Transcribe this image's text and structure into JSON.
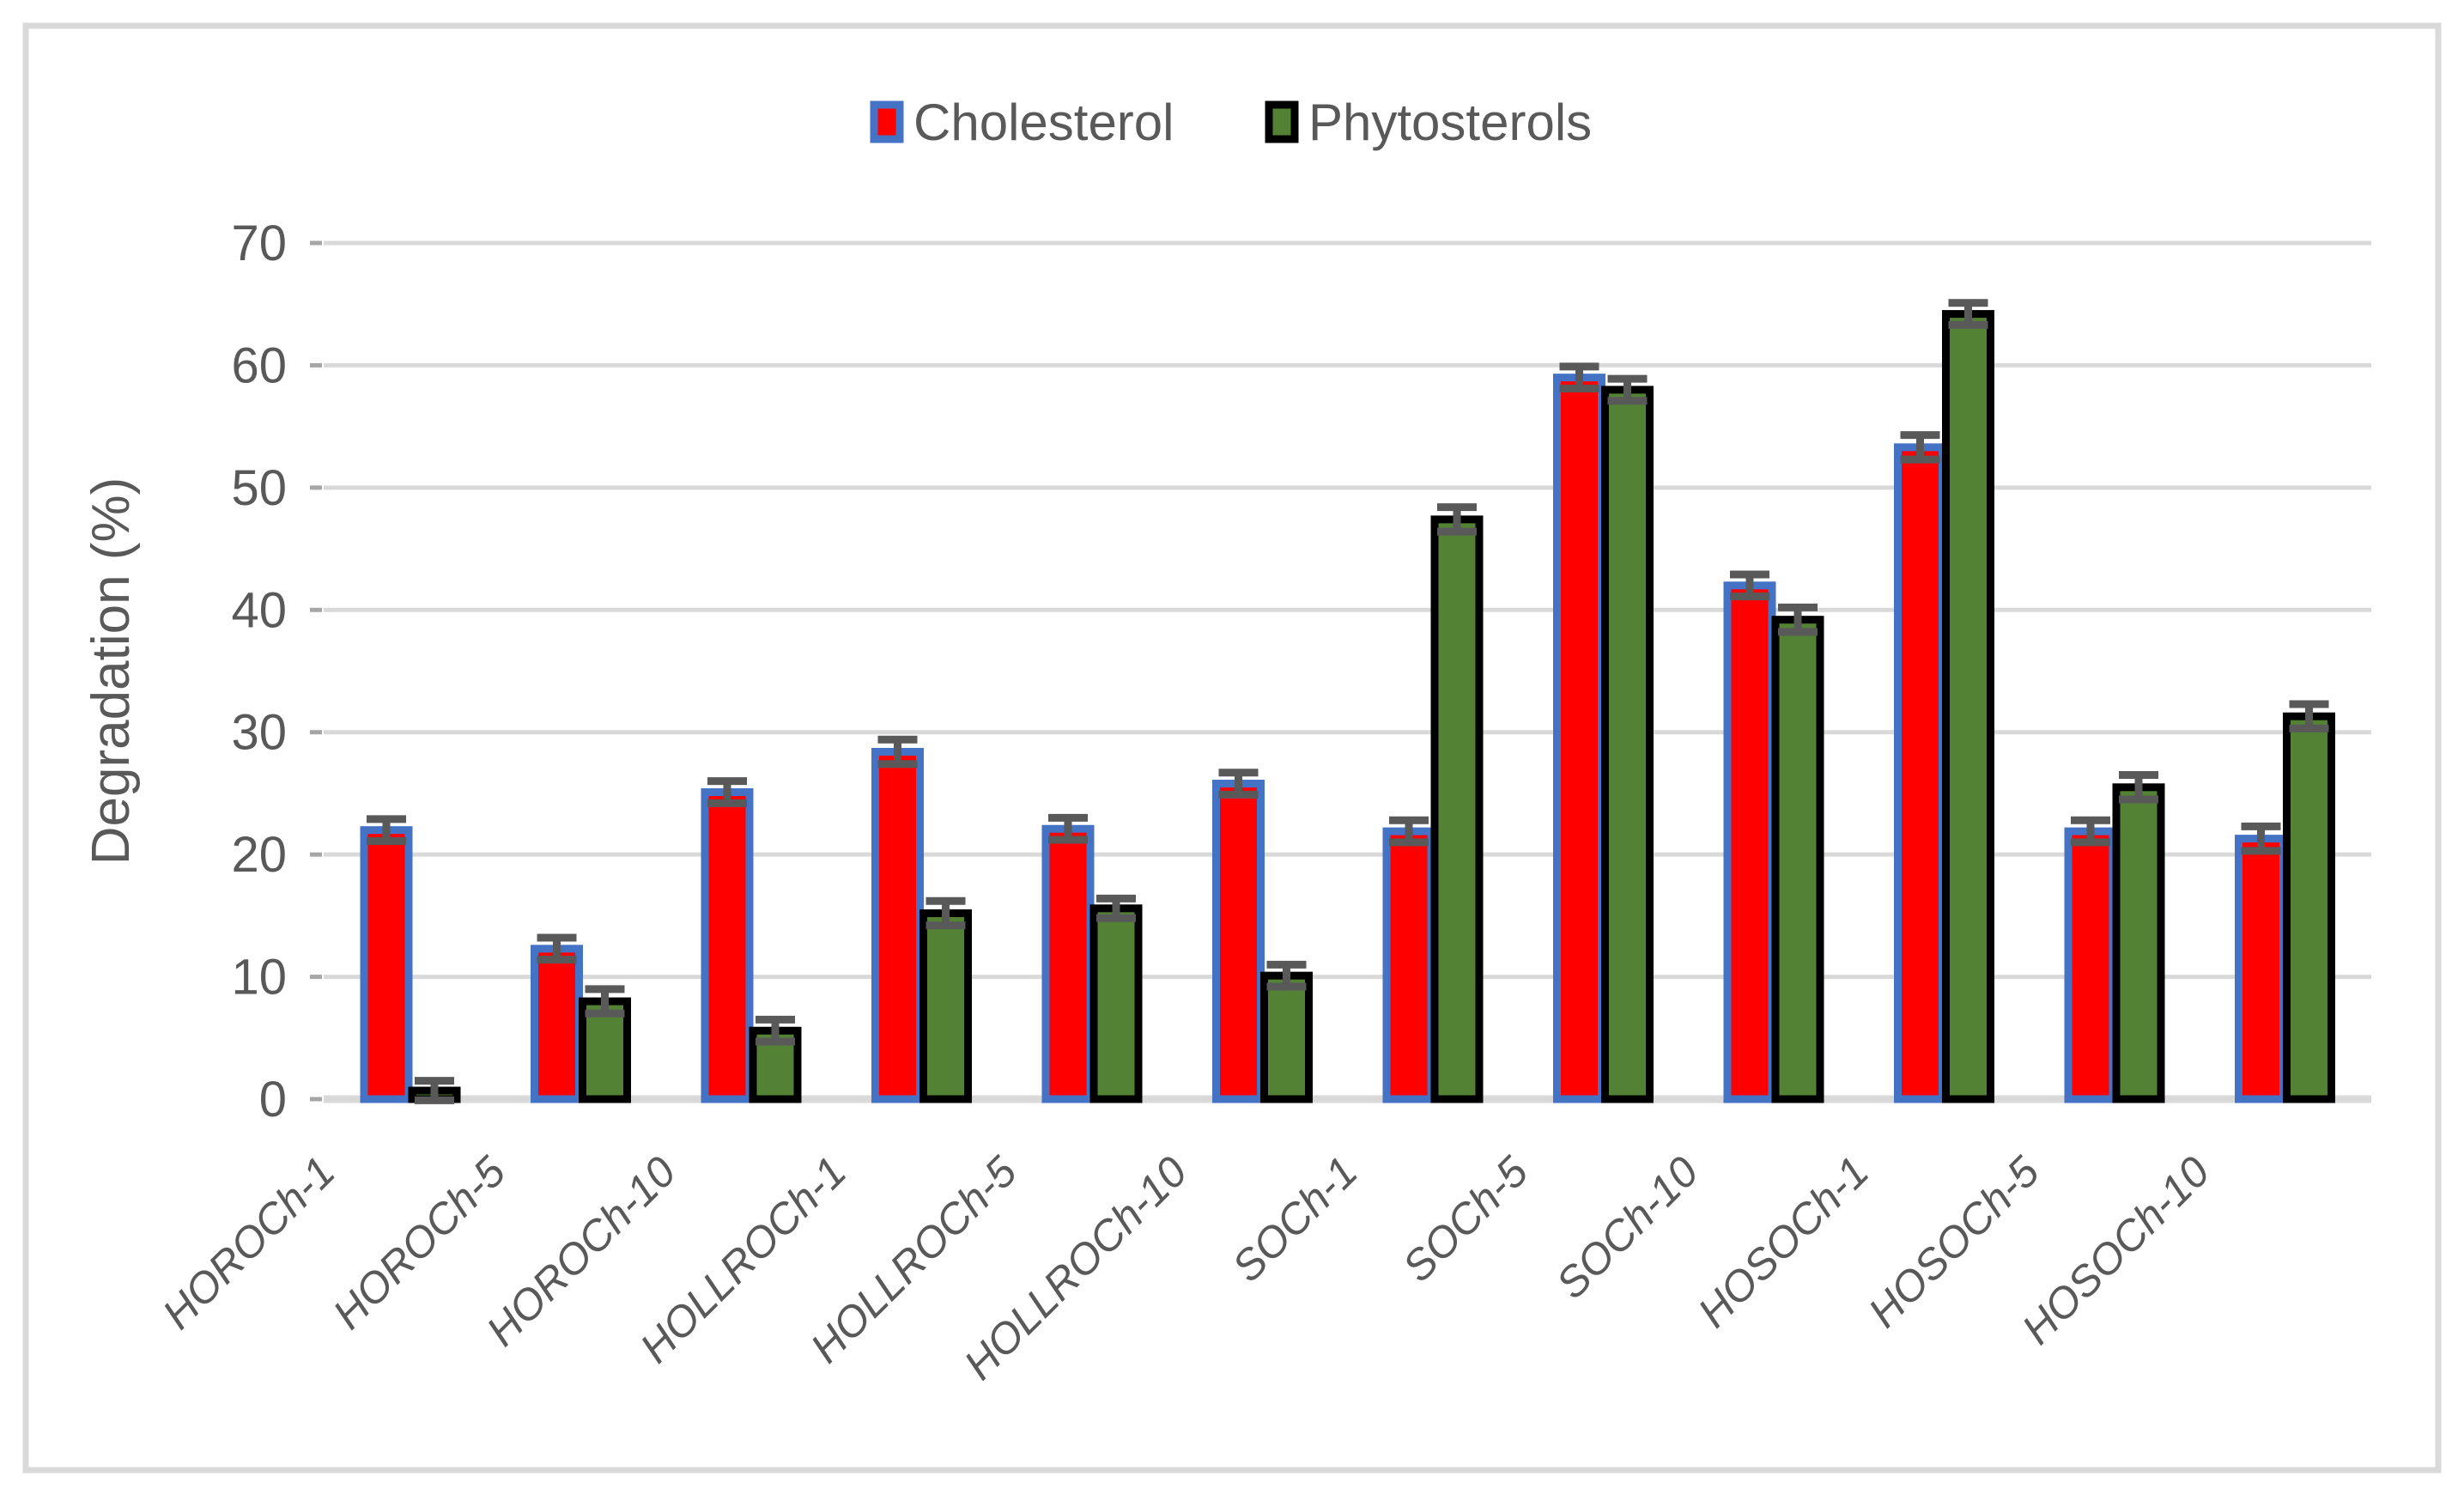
{
  "chart_data": {
    "type": "bar",
    "title": "",
    "categories": [
      "HOROCh-1",
      "HOROCh-5",
      "HOROCh-10",
      "HOLLROCh-1",
      "HOLLROCh-5",
      "HOLLROCh-10",
      "SOCh-1",
      "SOCh-5",
      "SOCh-10",
      "HOSOCh-1",
      "HOSOCh-5",
      "HOSOCh-10"
    ],
    "series": [
      {
        "name": "Cholesterol",
        "color": "#FF0000",
        "border_color": "#4472C4",
        "values": [
          22.0,
          12.3,
          25.1,
          28.4,
          22.1,
          25.8,
          21.9,
          59.0,
          42.0,
          53.3,
          21.9,
          21.3
        ],
        "errors": [
          0.9,
          0.9,
          0.9,
          1.0,
          0.9,
          0.9,
          0.9,
          0.9,
          0.9,
          1.0,
          0.9,
          1.0
        ]
      },
      {
        "name": "Phytosterols",
        "color": "#548235",
        "border_color": "#000000",
        "values": [
          0.7,
          8.0,
          5.6,
          15.2,
          15.6,
          10.1,
          47.4,
          58.0,
          39.2,
          64.2,
          25.5,
          31.3
        ],
        "errors": [
          0.8,
          1.0,
          0.9,
          1.0,
          0.8,
          0.9,
          1.0,
          0.9,
          1.0,
          0.9,
          1.0,
          1.0
        ]
      }
    ],
    "xlabel": "",
    "ylabel": "Degradation (%)",
    "ylim": [
      0,
      70
    ],
    "ytick_step": 10,
    "ytick_labels": [
      "0",
      "10",
      "20",
      "30",
      "40",
      "50",
      "60",
      "70"
    ],
    "grid": true,
    "error_bars": true,
    "legend_position": "top-center",
    "gridline_color": "#D9D9D9",
    "tick_color": "#A6A6A6",
    "error_bar_color": "#595959",
    "text_color": "#595959",
    "frame_color": "#D9D9D9"
  }
}
